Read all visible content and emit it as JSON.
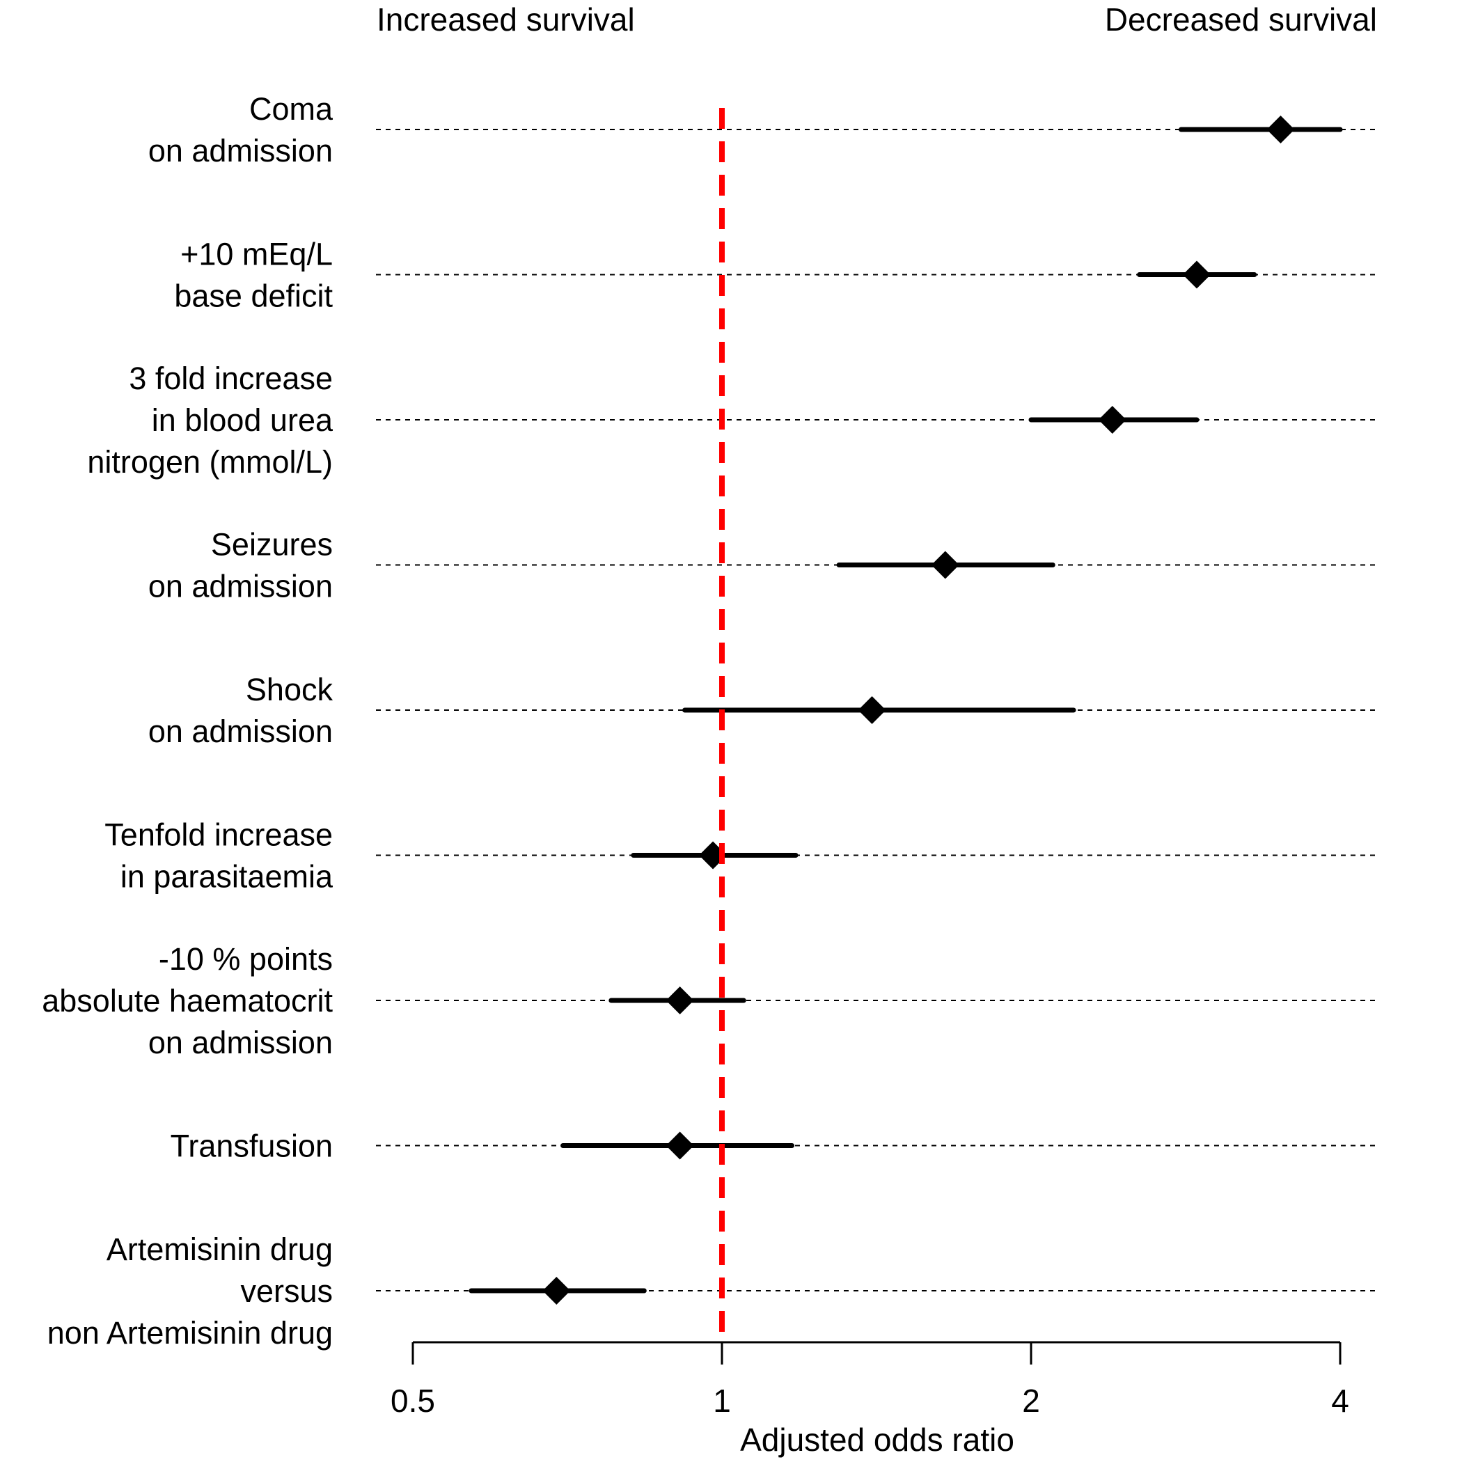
{
  "chart_data": {
    "type": "forest",
    "header_left": "Increased survival",
    "header_right": "Decreased survival",
    "xlabel": "Adjusted odds ratio",
    "x_scale": "log2",
    "xlim": [
      0.5,
      4
    ],
    "x_ticks": [
      0.5,
      1,
      2,
      4
    ],
    "x_tick_labels": [
      "0.5",
      "1",
      "2",
      "4"
    ],
    "reference_line": {
      "x": 1,
      "color": "#ff0000",
      "style": "dashed"
    },
    "marker_color": "#000000",
    "rows": [
      {
        "label": [
          "Coma",
          "on admission"
        ],
        "estimate": 3.5,
        "lower": 2.8,
        "upper": 4.0
      },
      {
        "label": [
          "+10 mEq/L",
          "base deficit"
        ],
        "estimate": 2.9,
        "lower": 2.55,
        "upper": 3.3
      },
      {
        "label": [
          "3 fold increase",
          "in blood urea",
          "nitrogen (mmol/L)"
        ],
        "estimate": 2.4,
        "lower": 2.0,
        "upper": 2.9
      },
      {
        "label": [
          "Seizures",
          "on admission"
        ],
        "estimate": 1.65,
        "lower": 1.3,
        "upper": 2.1
      },
      {
        "label": [
          "Shock",
          "on admission"
        ],
        "estimate": 1.4,
        "lower": 0.92,
        "upper": 2.2
      },
      {
        "label": [
          "Tenfold increase",
          "in parasitaemia"
        ],
        "estimate": 0.98,
        "lower": 0.82,
        "upper": 1.18
      },
      {
        "label": [
          "-10 % points",
          "absolute haematocrit",
          "on admission"
        ],
        "estimate": 0.91,
        "lower": 0.78,
        "upper": 1.05
      },
      {
        "label": [
          "Transfusion"
        ],
        "estimate": 0.91,
        "lower": 0.7,
        "upper": 1.17
      },
      {
        "label": [
          "Artemisinin drug",
          "versus",
          "non Artemisinin drug"
        ],
        "estimate": 0.69,
        "lower": 0.57,
        "upper": 0.84
      }
    ]
  }
}
